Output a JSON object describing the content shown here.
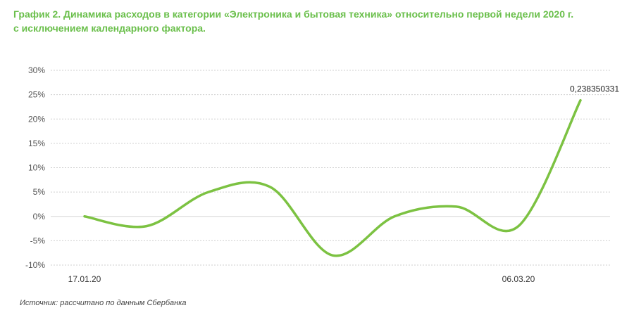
{
  "title": {
    "line1": "График 2. Динамика расходов в категории «Электроника и бытовая техника» относительно первой недели 2020 г.",
    "line2": "с исключением календарного фактора."
  },
  "source": "Источник: рассчитано по данным Сбербанка",
  "colors": {
    "title": "#6abf4b",
    "series": "#7cc242",
    "grid": "#cfcfcf",
    "text": "#555555"
  },
  "chart_data": {
    "type": "line",
    "title": "График 2. Динамика расходов в категории «Электроника и бытовая техника» относительно первой недели 2020 г. с исключением календарного фактора.",
    "xlabel": "",
    "ylabel": "",
    "x_tick_labels": [
      {
        "index": 0,
        "label": "17.01.20"
      },
      {
        "index": 7,
        "label": "06.03.20"
      }
    ],
    "x": [
      0,
      1,
      2,
      3,
      4,
      5,
      6,
      7,
      8
    ],
    "ylim": [
      -0.1,
      0.3
    ],
    "y_ticks": [
      -0.1,
      -0.05,
      0,
      0.05,
      0.1,
      0.15,
      0.2,
      0.25,
      0.3
    ],
    "y_tick_labels": [
      "-10%",
      "-5%",
      "0%",
      "5%",
      "10%",
      "15%",
      "20%",
      "25%",
      "30%"
    ],
    "grid": true,
    "series": [
      {
        "values": [
          0.0,
          -0.02,
          0.05,
          0.06,
          -0.08,
          0.0,
          0.02,
          -0.02,
          0.238350331
        ]
      }
    ],
    "annotations": [
      {
        "index": 8,
        "text": "0,238350331"
      }
    ]
  }
}
